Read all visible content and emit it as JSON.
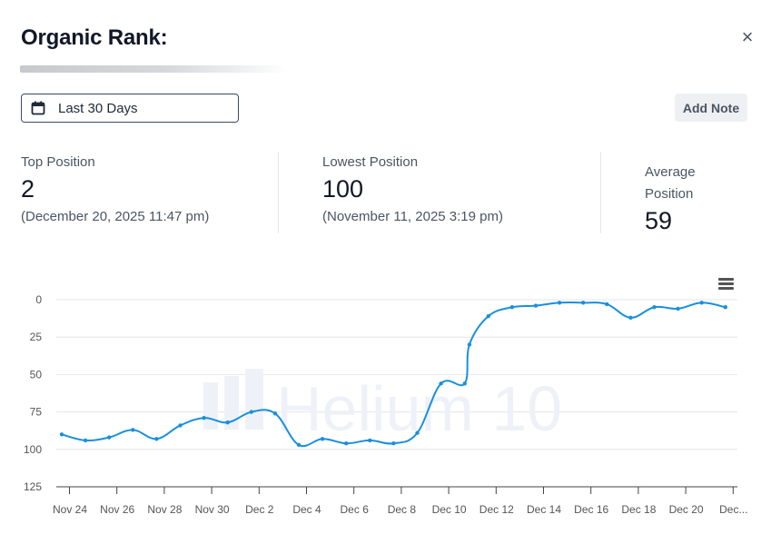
{
  "header": {
    "title": "Organic Rank:",
    "close_label": "×"
  },
  "toolbar": {
    "date_range": "Last 30 Days",
    "add_note": "Add Note"
  },
  "stats": {
    "top": {
      "label": "Top Position",
      "value": "2",
      "date": "(December 20, 2025 11:47 pm)"
    },
    "lowest": {
      "label": "Lowest Position",
      "value": "100",
      "date": "(November 11, 2025 3:19 pm)"
    },
    "average": {
      "label_line1": "Average",
      "label_line2": "Position",
      "value": "59"
    }
  },
  "watermark": "Helium 10",
  "chart_data": {
    "type": "line",
    "title": "",
    "xlabel": "",
    "ylabel": "",
    "y_reversed": true,
    "ylim": [
      0,
      125
    ],
    "yticks": [
      0,
      25,
      50,
      75,
      100,
      125
    ],
    "xtick_labels": [
      "Nov 24",
      "Nov 26",
      "Nov 28",
      "Nov 30",
      "Dec 2",
      "Dec 4",
      "Dec 6",
      "Dec 8",
      "Dec 10",
      "Dec 12",
      "Dec 14",
      "Dec 16",
      "Dec 18",
      "Dec 20",
      "Dec..."
    ],
    "grid": true,
    "color": "#1a8fdc",
    "x": [
      "Nov 24",
      "Nov 25",
      "Nov 26",
      "Nov 27",
      "Nov 28",
      "Nov 29",
      "Nov 30",
      "Dec 1",
      "Dec 2",
      "Dec 3",
      "Dec 4",
      "Dec 5",
      "Dec 6",
      "Dec 7",
      "Dec 8",
      "Dec 9",
      "Dec 10",
      "Dec 11",
      "Dec 11",
      "Dec 12",
      "Dec 13",
      "Dec 14",
      "Dec 15",
      "Dec 16",
      "Dec 17",
      "Dec 18",
      "Dec 19",
      "Dec 20",
      "Dec 21",
      "Dec 22"
    ],
    "x_index": [
      0,
      1,
      2,
      3,
      4,
      5,
      6,
      7,
      8,
      9,
      10,
      11,
      12,
      13,
      14,
      15,
      16,
      17,
      17.2,
      18,
      19,
      20,
      21,
      22,
      23,
      24,
      25,
      26,
      27,
      28
    ],
    "values": [
      90,
      94,
      92,
      87,
      93,
      84,
      79,
      82,
      75,
      76,
      97,
      93,
      96,
      94,
      96,
      89,
      56,
      56,
      30,
      11,
      5,
      4,
      2,
      2,
      3,
      12,
      5,
      6,
      2,
      5
    ]
  }
}
